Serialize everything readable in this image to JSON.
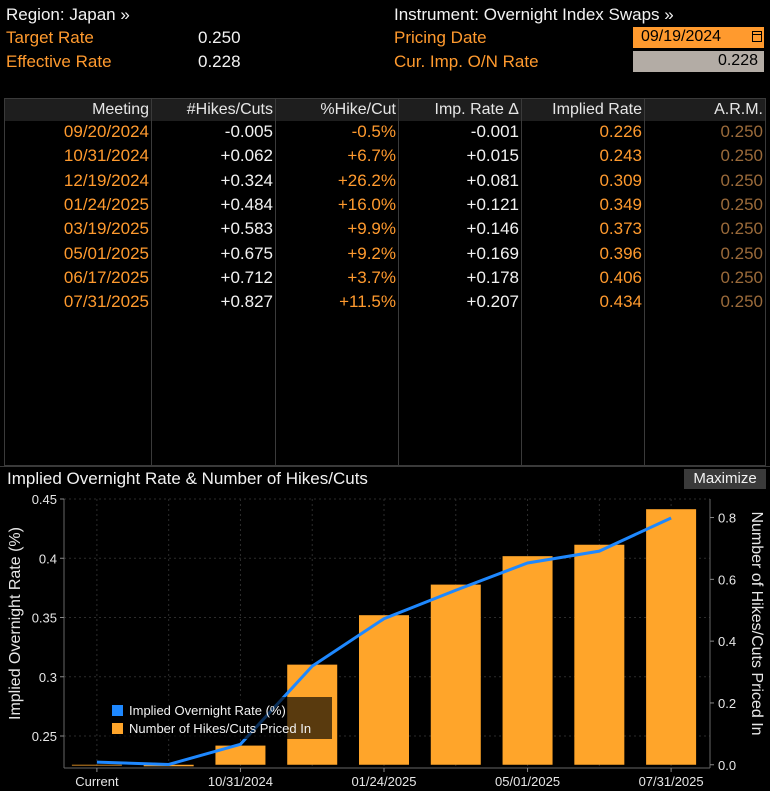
{
  "header": {
    "region": "Region: Japan »",
    "instrument": "Instrument: Overnight Index Swaps »",
    "target_rate_label": "Target Rate",
    "target_rate_value": "0.250",
    "effective_rate_label": "Effective Rate",
    "effective_rate_value": "0.228",
    "pricing_date_label": "Pricing Date",
    "pricing_date_value": "09/19/2024",
    "cur_imp_label": "Cur. Imp. O/N Rate",
    "cur_imp_value": "0.228"
  },
  "table": {
    "headers": [
      "Meeting",
      "#Hikes/Cuts",
      "%Hike/Cut",
      "Imp. Rate Δ",
      "Implied Rate",
      "A.R.M."
    ],
    "rows": [
      [
        "09/20/2024",
        "-0.005",
        "-0.5%",
        "-0.001",
        "0.226",
        "0.250"
      ],
      [
        "10/31/2024",
        "+0.062",
        "+6.7%",
        "+0.015",
        "0.243",
        "0.250"
      ],
      [
        "12/19/2024",
        "+0.324",
        "+26.2%",
        "+0.081",
        "0.309",
        "0.250"
      ],
      [
        "01/24/2025",
        "+0.484",
        "+16.0%",
        "+0.121",
        "0.349",
        "0.250"
      ],
      [
        "03/19/2025",
        "+0.583",
        "+9.9%",
        "+0.146",
        "0.373",
        "0.250"
      ],
      [
        "05/01/2025",
        "+0.675",
        "+9.2%",
        "+0.169",
        "0.396",
        "0.250"
      ],
      [
        "06/17/2025",
        "+0.712",
        "+3.7%",
        "+0.178",
        "0.406",
        "0.250"
      ],
      [
        "07/31/2025",
        "+0.827",
        "+11.5%",
        "+0.207",
        "0.434",
        "0.250"
      ]
    ]
  },
  "chart_panel": {
    "title": "Implied Overnight Rate & Number of Hikes/Cuts",
    "maximize_label": "Maximize"
  },
  "colors": {
    "orange": "#ff9a2e",
    "line_blue": "#1e88ff",
    "bar_orange": "#ffa52a"
  },
  "chart_data": {
    "type": "bar",
    "title": "Implied Overnight Rate & Number of Hikes/Cuts",
    "categories": [
      "Current",
      "09/20/2024",
      "10/31/2024",
      "12/19/2024",
      "01/24/2025",
      "03/19/2025",
      "05/01/2025",
      "06/17/2025",
      "07/31/2025"
    ],
    "x_tick_labels": [
      "Current",
      "10/31/2024",
      "01/24/2025",
      "05/01/2025",
      "07/31/2025"
    ],
    "series": [
      {
        "name": "Implied Overnight Rate (%)",
        "type": "line",
        "axis": "left",
        "values": [
          0.228,
          0.226,
          0.243,
          0.309,
          0.349,
          0.373,
          0.396,
          0.406,
          0.434
        ]
      },
      {
        "name": "Number of Hikes/Cuts Priced In",
        "type": "bar",
        "axis": "right",
        "values": [
          0.0,
          -0.005,
          0.062,
          0.324,
          0.484,
          0.583,
          0.675,
          0.712,
          0.827
        ]
      }
    ],
    "ylabel": "Implied Overnight Rate (%)",
    "y2label": "Number of Hikes/Cuts Priced In",
    "ylim": [
      0.223,
      0.45
    ],
    "y_ticks": [
      "0.25",
      "0.3",
      "0.35",
      "0.4",
      "0.45"
    ],
    "y2lim": [
      -0.0105,
      0.86
    ],
    "y2_ticks": [
      "0.0",
      "0.2",
      "0.4",
      "0.6",
      "0.8"
    ],
    "grid": true,
    "legend": "bottom-left"
  }
}
